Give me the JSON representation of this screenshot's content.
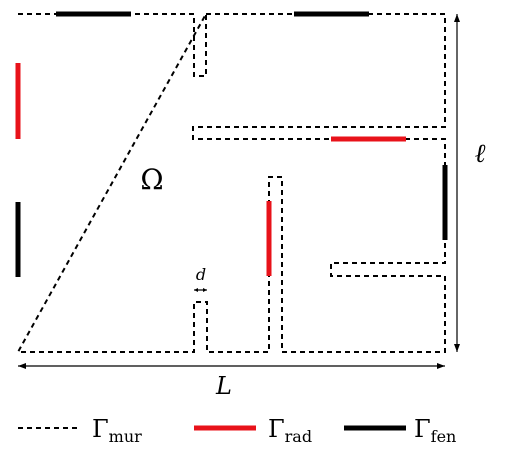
{
  "labels": {
    "domain": "Ω",
    "length_L": "L",
    "length_ell": "ℓ",
    "gap_d": "d"
  },
  "legend": [
    {
      "symbol": "Γ",
      "sub": "mur",
      "style": "dashed",
      "color": "#000000"
    },
    {
      "symbol": "Γ",
      "sub": "rad",
      "style": "solid",
      "color": "#e8121a"
    },
    {
      "symbol": "Γ",
      "sub": "fen",
      "style": "solid",
      "color": "#000000"
    }
  ],
  "colors": {
    "wall": "#000000",
    "radiator": "#e8121a",
    "window": "#000000"
  }
}
